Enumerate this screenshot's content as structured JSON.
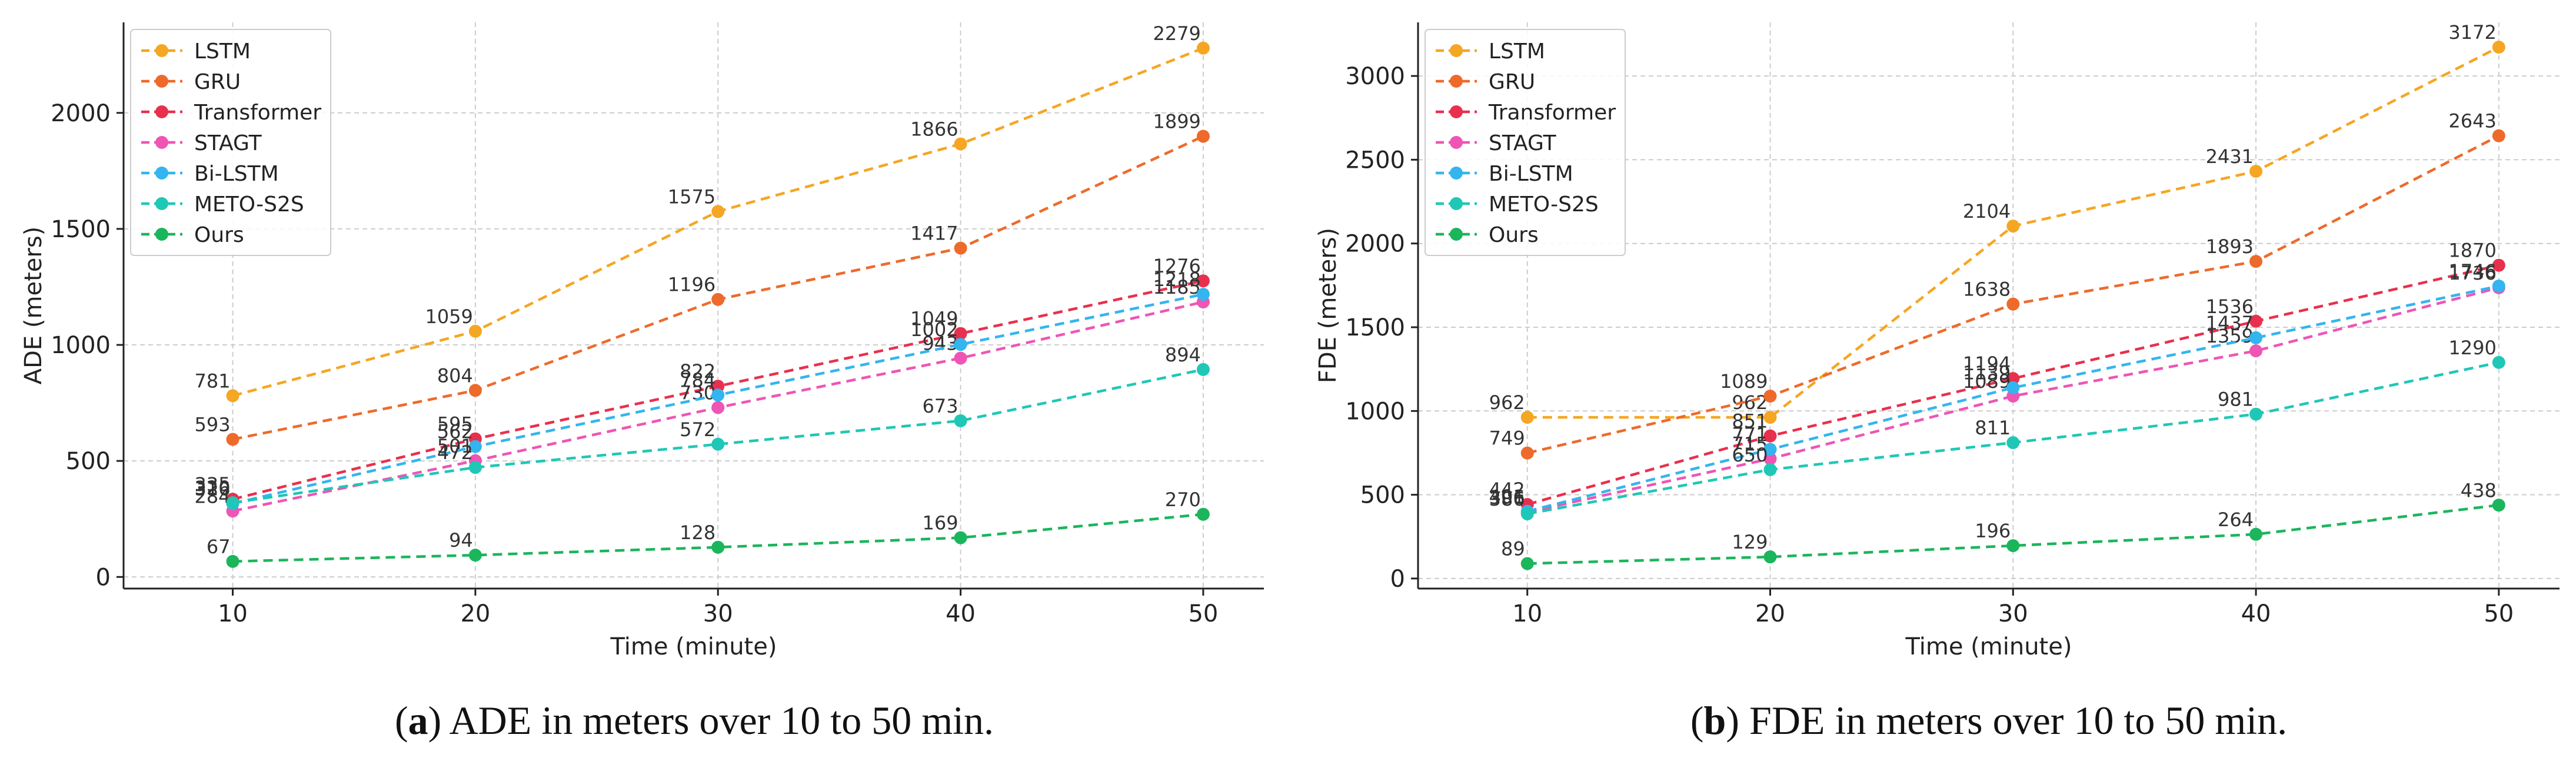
{
  "chart_data": [
    {
      "type": "line",
      "ylabel": "ADE (meters)",
      "xlabel": "Time (minute)",
      "x": [
        10,
        20,
        30,
        40,
        50
      ],
      "xlim": [
        5.5,
        52.5
      ],
      "ylim": [
        -50,
        2390
      ],
      "yticks": [
        0,
        500,
        1000,
        1500,
        2000
      ],
      "xticks": [
        10,
        20,
        30,
        40,
        50
      ],
      "grid": true,
      "legend": "top-left",
      "series": [
        {
          "name": "LSTM",
          "color": "#f5a623",
          "values": [
            781,
            1059,
            1575,
            1866,
            2279
          ]
        },
        {
          "name": "GRU",
          "color": "#ee6a2b",
          "values": [
            593,
            804,
            1196,
            1417,
            1899
          ]
        },
        {
          "name": "Transformer",
          "color": "#e8304e",
          "values": [
            335,
            595,
            822,
            1049,
            1276
          ]
        },
        {
          "name": "STAGT",
          "color": "#ee55b5",
          "values": [
            284,
            501,
            730,
            943,
            1185
          ]
        },
        {
          "name": "Bi-LSTM",
          "color": "#33b5ef",
          "values": [
            316,
            562,
            784,
            1002,
            1218
          ]
        },
        {
          "name": "METO-S2S",
          "color": "#1fc7b6",
          "values": [
            320,
            472,
            572,
            673,
            894
          ]
        },
        {
          "name": "Ours",
          "color": "#1bb55c",
          "values": [
            67,
            94,
            128,
            169,
            270
          ]
        }
      ],
      "caption": {
        "tag": "a",
        "text": "ADE in meters over 10 to 50 min."
      }
    },
    {
      "type": "line",
      "ylabel": "FDE (meters)",
      "xlabel": "Time (minute)",
      "x": [
        10,
        20,
        30,
        40,
        50
      ],
      "xlim": [
        5.5,
        52.5
      ],
      "ylim": [
        -60,
        3320
      ],
      "yticks": [
        0,
        500,
        1000,
        1500,
        2000,
        2500,
        3000
      ],
      "xticks": [
        10,
        20,
        30,
        40,
        50
      ],
      "grid": true,
      "legend": "top-left",
      "series": [
        {
          "name": "LSTM",
          "color": "#f5a623",
          "values": [
            962,
            962,
            2104,
            2431,
            3172
          ]
        },
        {
          "name": "GRU",
          "color": "#ee6a2b",
          "values": [
            749,
            1089,
            1638,
            1893,
            2643
          ]
        },
        {
          "name": "Transformer",
          "color": "#e8304e",
          "values": [
            442,
            851,
            1194,
            1536,
            1870
          ]
        },
        {
          "name": "STAGT",
          "color": "#ee55b5",
          "values": [
            396,
            715,
            1089,
            1359,
            1736
          ]
        },
        {
          "name": "Bi-LSTM",
          "color": "#33b5ef",
          "values": [
            401,
            771,
            1139,
            1437,
            1746
          ]
        },
        {
          "name": "METO-S2S",
          "color": "#1fc7b6",
          "values": [
            386,
            650,
            811,
            981,
            1290
          ]
        },
        {
          "name": "Ours",
          "color": "#1bb55c",
          "values": [
            89,
            129,
            196,
            264,
            438
          ]
        }
      ],
      "caption": {
        "tag": "b",
        "text": "FDE in meters over 10 to 50 min."
      }
    }
  ]
}
